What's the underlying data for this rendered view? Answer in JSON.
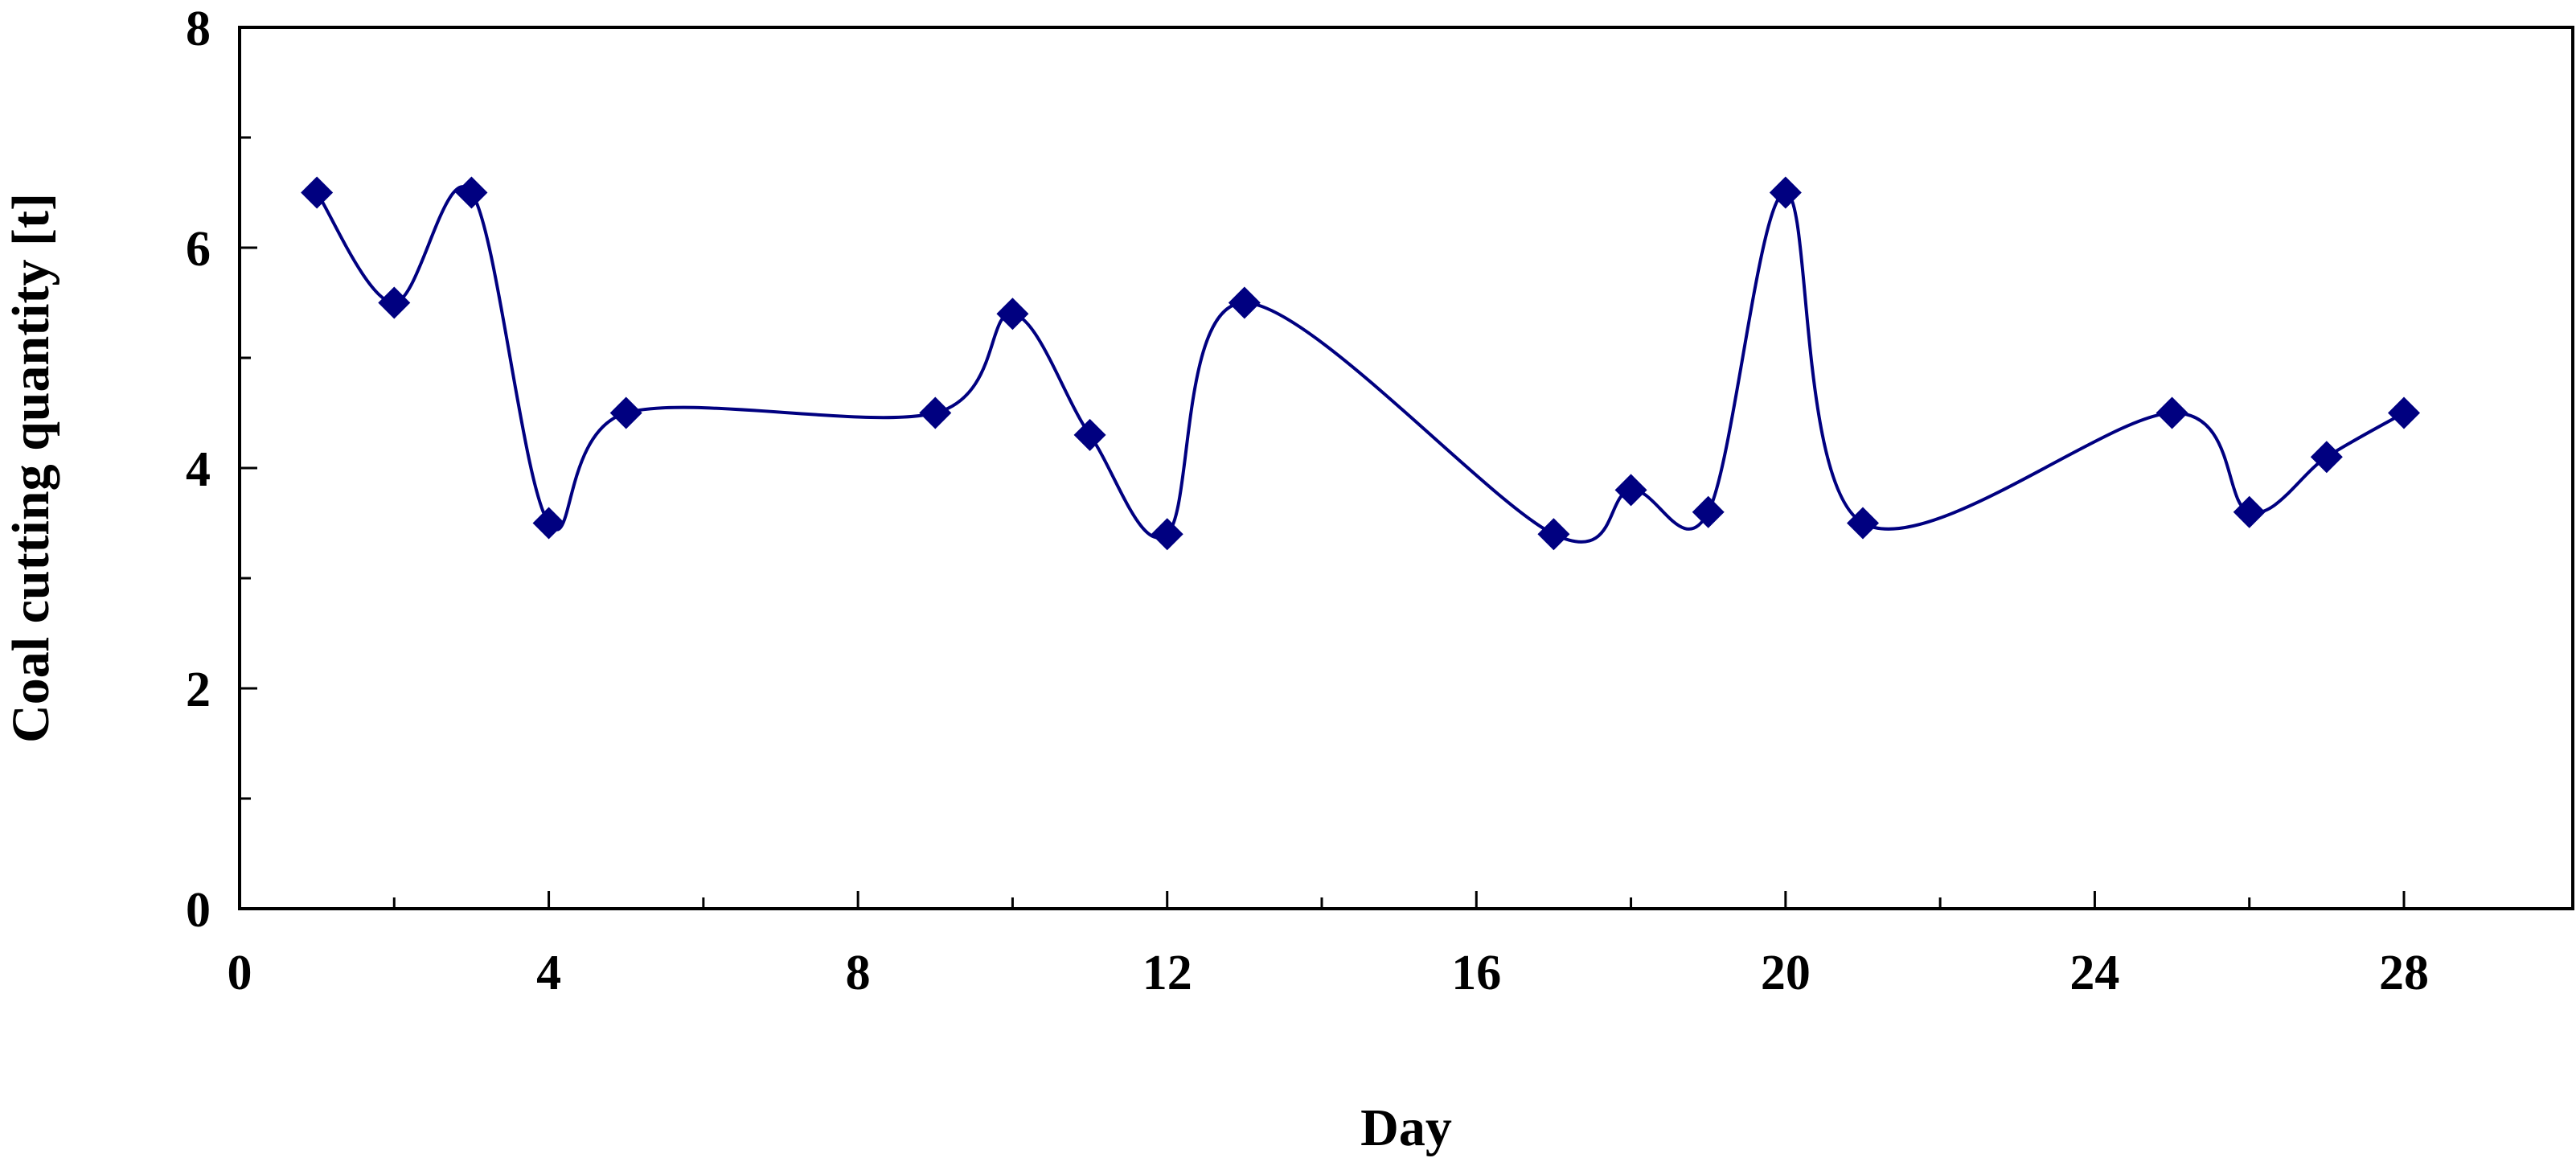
{
  "chart_data": {
    "type": "line",
    "title": "",
    "xlabel": "Day",
    "ylabel": "Coal cutting quantity [t]",
    "xlim": [
      0,
      30
    ],
    "ylim": [
      0,
      8
    ],
    "x_ticks": [
      0,
      4,
      8,
      12,
      16,
      20,
      24,
      28
    ],
    "y_ticks": [
      0,
      2,
      4,
      6,
      8
    ],
    "x_minor_step": 2,
    "y_minor_step": 1,
    "grid": false,
    "legend": "none",
    "smooth": true,
    "marker": "diamond",
    "color": "#000080",
    "series": [
      {
        "x": [
          1,
          2,
          3,
          4,
          5,
          9,
          10,
          11,
          12,
          13,
          17,
          18,
          19,
          20,
          21,
          25,
          26,
          27,
          28
        ],
        "y": [
          6.5,
          5.5,
          6.5,
          3.5,
          4.5,
          4.5,
          5.4,
          4.3,
          3.4,
          5.5,
          3.4,
          3.8,
          3.6,
          6.5,
          3.5,
          4.5,
          3.6,
          4.1,
          4.5
        ]
      }
    ]
  }
}
